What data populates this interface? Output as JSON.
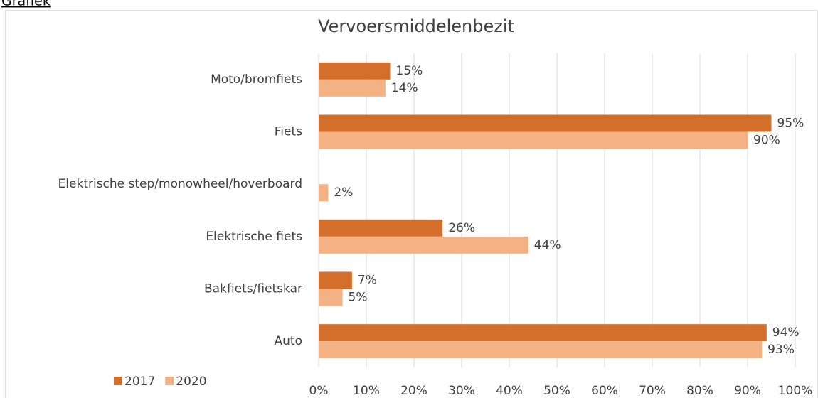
{
  "link": "Grafiek",
  "chart_data": {
    "type": "bar",
    "orientation": "horizontal",
    "title": "Vervoersmiddelenbezit",
    "categories": [
      "Moto/bromfiets",
      "Fiets",
      "Elektrische step/monowheel/hoverboard",
      "Elektrische fiets",
      "Bakfiets/fietskar",
      "Auto"
    ],
    "series": [
      {
        "name": "2017",
        "color": "#d46e2b",
        "values": [
          15,
          95,
          null,
          26,
          7,
          94
        ],
        "value_labels": [
          "15%",
          "95%",
          null,
          "26%",
          "7%",
          "94%"
        ]
      },
      {
        "name": "2020",
        "color": "#f4b183",
        "values": [
          14,
          90,
          2,
          44,
          5,
          93
        ],
        "value_labels": [
          "14%",
          "90%",
          "2%",
          "44%",
          "5%",
          "93%"
        ]
      }
    ],
    "xlim": [
      0,
      100
    ],
    "xticks": [
      {
        "value": 0,
        "label": "0%"
      },
      {
        "value": 10,
        "label": "10%"
      },
      {
        "value": 20,
        "label": "20%"
      },
      {
        "value": 30,
        "label": "30%"
      },
      {
        "value": 40,
        "label": "40%"
      },
      {
        "value": 50,
        "label": "50%"
      },
      {
        "value": 60,
        "label": "60%"
      },
      {
        "value": 70,
        "label": "70%"
      },
      {
        "value": 80,
        "label": "80%"
      },
      {
        "value": 90,
        "label": "90%"
      },
      {
        "value": 100,
        "label": "100%"
      }
    ],
    "grid": true,
    "legend": "bottom-left"
  }
}
